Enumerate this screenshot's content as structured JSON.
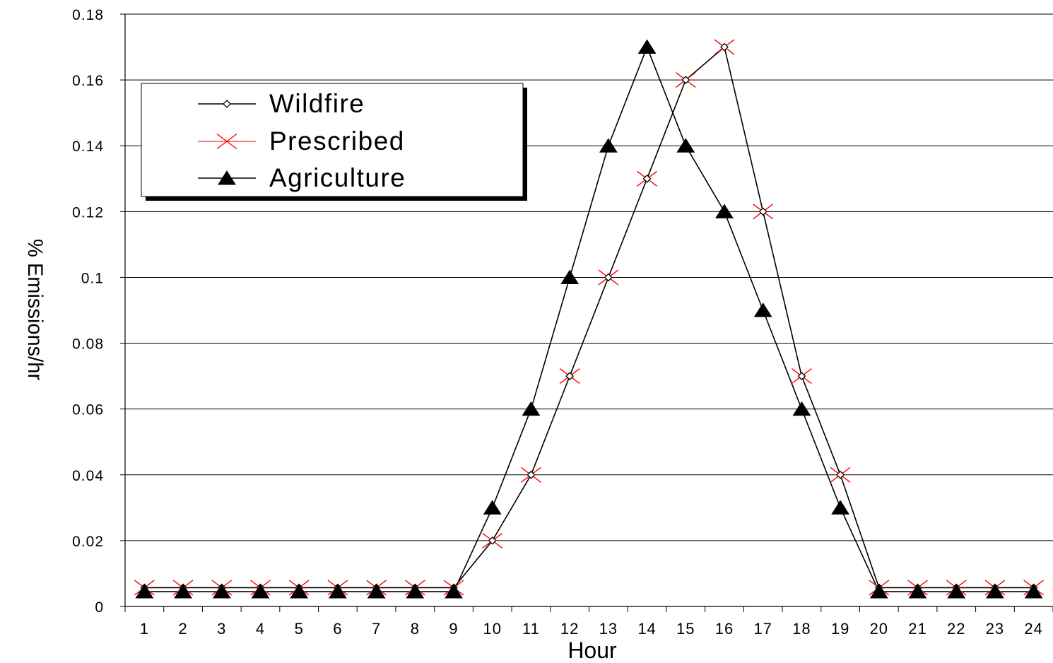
{
  "chart_data": {
    "type": "line",
    "title": "",
    "xlabel": "Hour",
    "ylabel": "% Emissions/hr",
    "ylim": [
      0,
      0.18
    ],
    "yticks": [
      0,
      0.02,
      0.04,
      0.06,
      0.08,
      0.1,
      0.12,
      0.14,
      0.16,
      0.18
    ],
    "ytick_labels": [
      "0",
      "0.02",
      "0.04",
      "0.06",
      "0.08",
      "0.1",
      "0.12",
      "0.14",
      "0.16",
      "0.18"
    ],
    "categories": [
      "1",
      "2",
      "3",
      "4",
      "5",
      "6",
      "7",
      "8",
      "9",
      "10",
      "11",
      "12",
      "13",
      "14",
      "15",
      "16",
      "17",
      "18",
      "19",
      "20",
      "21",
      "22",
      "23",
      "24"
    ],
    "grid": "horizontal",
    "legend_position": "top-left",
    "series": [
      {
        "name": "Wildfire",
        "marker": "diamond",
        "color": "#000000",
        "values": [
          0.0057,
          0.0057,
          0.0057,
          0.0057,
          0.0057,
          0.0057,
          0.0057,
          0.0057,
          0.0057,
          0.02,
          0.04,
          0.07,
          0.1,
          0.13,
          0.16,
          0.17,
          0.12,
          0.07,
          0.04,
          0.0057,
          0.0057,
          0.0057,
          0.0057,
          0.0057
        ]
      },
      {
        "name": "Prescribed",
        "marker": "x",
        "color": "#ff0000",
        "values": [
          0.0057,
          0.0057,
          0.0057,
          0.0057,
          0.0057,
          0.0057,
          0.0057,
          0.0057,
          0.0057,
          0.02,
          0.04,
          0.07,
          0.1,
          0.13,
          0.16,
          0.17,
          0.12,
          0.07,
          0.04,
          0.0057,
          0.0057,
          0.0057,
          0.0057,
          0.0057
        ]
      },
      {
        "name": "Agriculture",
        "marker": "triangle",
        "color": "#000000",
        "values": [
          0.0045,
          0.0045,
          0.0045,
          0.0045,
          0.0045,
          0.0045,
          0.0045,
          0.0045,
          0.0045,
          0.03,
          0.06,
          0.1,
          0.14,
          0.17,
          0.14,
          0.12,
          0.09,
          0.06,
          0.03,
          0.0045,
          0.0045,
          0.0045,
          0.0045,
          0.0045
        ]
      }
    ]
  }
}
